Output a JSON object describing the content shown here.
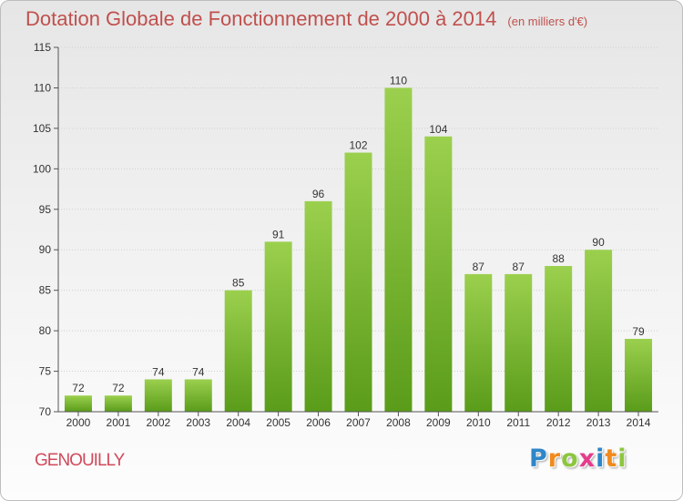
{
  "chart_data": {
    "type": "bar",
    "title": "Dotation Globale de Fonctionnement de 2000 à 2014",
    "subtitle": "(en milliers d'€)",
    "categories": [
      "2000",
      "2001",
      "2002",
      "2003",
      "2004",
      "2005",
      "2006",
      "2007",
      "2008",
      "2009",
      "2010",
      "2011",
      "2012",
      "2013",
      "2014"
    ],
    "values": [
      72,
      72,
      74,
      74,
      85,
      91,
      96,
      102,
      110,
      104,
      87,
      87,
      88,
      90,
      79
    ],
    "ylim": [
      70,
      115
    ],
    "yticks": [
      70,
      75,
      80,
      85,
      90,
      95,
      100,
      105,
      110,
      115
    ],
    "xlabel": "",
    "ylabel": "",
    "bar_color_top": "#9bd04e",
    "bar_color_bottom": "#5a9c1a"
  },
  "footer": {
    "place": "GENOUILLY",
    "logo_letters": [
      {
        "ch": "P",
        "color": "#2e86c9"
      },
      {
        "ch": "r",
        "color": "#f08a1c"
      },
      {
        "ch": "o",
        "color": "#8cc63f"
      },
      {
        "ch": "x",
        "color": "#e63c8c"
      },
      {
        "ch": "i",
        "color": "#2e86c9"
      },
      {
        "ch": "t",
        "color": "#f08a1c"
      },
      {
        "ch": "i",
        "color": "#8cc63f"
      }
    ]
  },
  "colors": {
    "title": "#c0504d",
    "place": "#d14a5b",
    "axis": "#555555",
    "grid": "#cfcfcf"
  }
}
